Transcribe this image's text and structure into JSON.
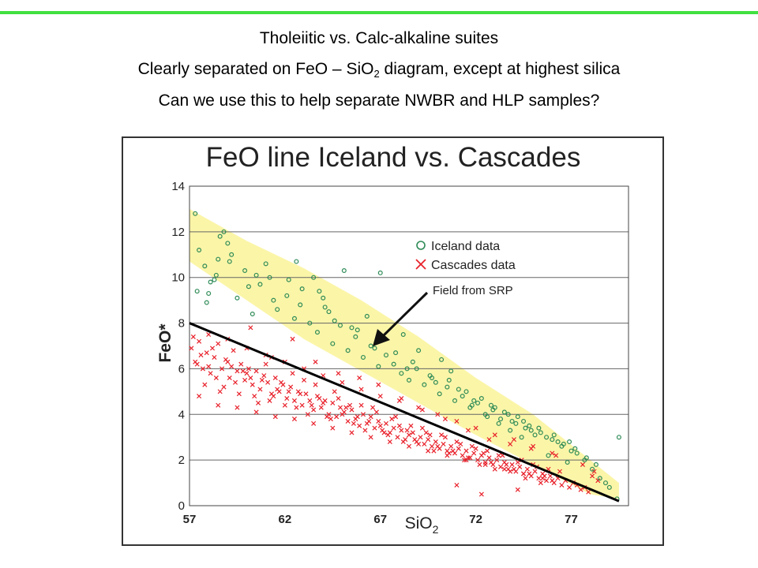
{
  "slide": {
    "line1": "Tholeiitic vs. Calc-alkaline suites",
    "line2_pre": "Clearly separated on FeO – SiO",
    "line2_sub": "2",
    "line2_post": " diagram, except at highest silica",
    "line3": "Can we use this to help separate NWBR and HLP samples?",
    "accent_color": "#40e040"
  },
  "chart_data": {
    "type": "scatter",
    "title": "FeO line Iceland vs. Cascades",
    "xlabel": "SiO",
    "xlabel_sub": "2",
    "ylabel": "FeO*",
    "xlim": [
      57,
      80
    ],
    "ylim": [
      0,
      14
    ],
    "xticks": [
      57,
      62,
      67,
      72,
      77
    ],
    "yticks": [
      0,
      2,
      4,
      6,
      8,
      10,
      12,
      14
    ],
    "grid": "horizontal",
    "legend": [
      {
        "label": "Iceland data",
        "marker": "circle",
        "color": "#2e8b57"
      },
      {
        "label": "Cascades data",
        "marker": "x",
        "color": "#e8202a"
      }
    ],
    "annotation": {
      "text": "Field from SRP"
    },
    "field_color": "#fbf5a8",
    "field_from_srp": {
      "upper": [
        [
          57,
          13.0
        ],
        [
          60,
          11.6
        ],
        [
          63,
          10.4
        ],
        [
          66,
          9.0
        ],
        [
          69,
          7.4
        ],
        [
          72,
          5.6
        ],
        [
          75,
          4.0
        ],
        [
          78,
          2.0
        ],
        [
          79.5,
          1.0
        ]
      ],
      "lower": [
        [
          79.5,
          0.3
        ],
        [
          78,
          0.5
        ],
        [
          75,
          1.8
        ],
        [
          72,
          3.1
        ],
        [
          69,
          4.5
        ],
        [
          66,
          5.9
        ],
        [
          63,
          7.3
        ],
        [
          60,
          9.0
        ],
        [
          57,
          10.7
        ]
      ]
    },
    "line": {
      "x": [
        57,
        79.5
      ],
      "y": [
        8.0,
        0.2
      ],
      "color": "#000000"
    },
    "series": [
      {
        "name": "Iceland data",
        "color": "#2e8b57",
        "marker": "circle",
        "x": [
          57.3,
          57.5,
          57.8,
          58.1,
          58.4,
          58.6,
          57.4,
          57.9,
          58.3,
          58.8,
          59.1,
          59.5,
          59.9,
          60.3,
          60.7,
          61.2,
          61.6,
          62.1,
          62.5,
          62.9,
          63.3,
          63.7,
          64.1,
          64.5,
          64.9,
          65.3,
          65.7,
          66.1,
          66.5,
          66.9,
          67.3,
          67.7,
          68.1,
          68.5,
          68.9,
          69.3,
          69.7,
          70.1,
          70.5,
          70.9,
          71.3,
          71.7,
          72.1,
          72.5,
          72.9,
          73.3,
          73.7,
          74.1,
          74.5,
          74.9,
          75.3,
          75.7,
          76.1,
          76.5,
          76.9,
          77.3,
          77.7,
          78.1,
          78.5,
          79.0,
          79.4,
          62.6,
          65.1,
          59.2,
          61.0,
          63.5,
          64.0,
          66.3,
          67.0,
          68.2,
          69.0,
          70.2,
          70.7,
          71.5,
          72.3,
          72.8,
          73.5,
          74.2,
          74.8,
          75.4,
          76.0,
          76.6,
          77.2,
          77.8,
          78.3,
          62.2,
          63.8,
          60.1,
          60.5,
          64.6,
          65.8,
          66.8,
          68.7,
          69.6,
          71.1,
          71.9,
          73.0,
          73.9,
          74.6,
          75.1,
          76.3,
          77.0,
          58.0,
          58.5,
          59.0,
          61.4,
          62.8,
          64.3,
          65.5,
          66.7,
          67.8,
          68.4,
          69.9,
          70.6,
          71.8,
          72.6,
          73.2,
          73.8,
          74.4,
          75.8,
          76.8,
          78.8,
          79.5
        ],
        "y": [
          12.8,
          11.2,
          10.5,
          9.8,
          10.1,
          11.8,
          9.4,
          8.9,
          9.9,
          12.0,
          10.7,
          9.1,
          10.3,
          8.4,
          9.7,
          10.0,
          8.6,
          9.2,
          8.2,
          9.5,
          8.0,
          7.6,
          8.7,
          7.1,
          7.9,
          6.8,
          7.4,
          6.5,
          7.0,
          6.1,
          6.6,
          6.2,
          5.8,
          5.5,
          6.0,
          5.3,
          5.6,
          4.9,
          5.2,
          4.6,
          4.8,
          4.3,
          4.5,
          4.0,
          4.2,
          3.8,
          4.0,
          3.6,
          3.7,
          3.3,
          3.4,
          3.0,
          3.1,
          2.6,
          2.8,
          2.3,
          2.0,
          1.6,
          1.2,
          0.8,
          0.3,
          10.7,
          10.3,
          11.0,
          10.6,
          10.0,
          9.1,
          8.3,
          10.2,
          7.5,
          6.8,
          6.4,
          5.9,
          5.0,
          4.7,
          4.4,
          4.1,
          3.9,
          3.5,
          3.2,
          2.9,
          2.7,
          2.5,
          2.1,
          1.8,
          9.9,
          9.4,
          9.6,
          10.1,
          8.1,
          7.7,
          7.2,
          6.3,
          5.7,
          5.1,
          4.6,
          4.3,
          3.7,
          3.4,
          3.1,
          2.8,
          2.4,
          9.3,
          10.8,
          11.5,
          9.0,
          8.8,
          8.5,
          7.8,
          6.9,
          6.7,
          6.0,
          5.4,
          5.5,
          4.4,
          3.9,
          3.6,
          3.3,
          3.0,
          2.2,
          1.9,
          1.0,
          3.0
        ]
      },
      {
        "name": "Cascades data",
        "color": "#e8202a",
        "marker": "x",
        "x": [
          57.1,
          57.3,
          57.5,
          57.7,
          57.9,
          58.1,
          58.3,
          58.5,
          58.7,
          58.9,
          59.1,
          59.3,
          59.5,
          59.7,
          59.9,
          60.1,
          60.3,
          60.5,
          60.7,
          60.9,
          61.1,
          61.3,
          61.5,
          61.7,
          61.9,
          62.1,
          62.3,
          62.5,
          62.7,
          62.9,
          63.1,
          63.3,
          63.5,
          63.7,
          63.9,
          64.1,
          64.3,
          64.5,
          64.7,
          64.9,
          65.1,
          65.3,
          65.5,
          65.7,
          65.9,
          66.1,
          66.3,
          66.5,
          66.7,
          66.9,
          67.1,
          67.3,
          67.5,
          67.7,
          67.9,
          68.1,
          68.3,
          68.5,
          68.7,
          68.9,
          69.1,
          69.3,
          69.5,
          69.7,
          69.9,
          70.1,
          70.3,
          70.5,
          70.7,
          70.9,
          71.1,
          71.3,
          71.5,
          71.7,
          71.9,
          72.1,
          72.3,
          72.5,
          72.7,
          72.9,
          73.1,
          73.3,
          73.5,
          73.7,
          73.9,
          74.1,
          74.3,
          74.5,
          74.7,
          74.9,
          75.1,
          75.3,
          75.5,
          75.7,
          75.9,
          76.1,
          76.3,
          76.5,
          76.7,
          76.9,
          77.1,
          77.3,
          77.5,
          77.7,
          77.9,
          78.1,
          78.4,
          57.2,
          57.6,
          58.0,
          58.4,
          58.8,
          59.2,
          59.6,
          60.0,
          60.4,
          60.8,
          61.2,
          61.6,
          62.0,
          62.4,
          62.8,
          63.2,
          63.6,
          64.0,
          64.4,
          64.8,
          65.2,
          65.6,
          66.0,
          66.4,
          66.8,
          67.2,
          67.6,
          68.0,
          68.4,
          68.8,
          69.2,
          69.6,
          70.0,
          70.4,
          70.8,
          71.2,
          71.6,
          72.0,
          72.4,
          72.8,
          73.2,
          73.6,
          74.0,
          74.4,
          74.8,
          75.2,
          75.6,
          76.0,
          76.4,
          57.4,
          57.8,
          58.2,
          58.6,
          59.0,
          59.4,
          59.8,
          60.2,
          60.6,
          61.0,
          61.4,
          61.8,
          62.2,
          62.6,
          63.0,
          63.4,
          63.8,
          64.2,
          64.6,
          65.0,
          65.4,
          65.8,
          66.2,
          66.6,
          67.0,
          67.4,
          67.8,
          68.2,
          68.6,
          69.0,
          69.4,
          69.8,
          70.2,
          70.6,
          71.0,
          71.4,
          71.8,
          72.2,
          72.6,
          73.0,
          73.4,
          73.8,
          74.2,
          74.6,
          75.0,
          75.4,
          75.8,
          58.0,
          59.0,
          60.0,
          61.0,
          62.0,
          63.0,
          64.0,
          65.0,
          66.0,
          67.0,
          68.0,
          69.0,
          70.0,
          71.0,
          72.0,
          73.0,
          74.0,
          75.0,
          76.0,
          57.5,
          58.5,
          59.5,
          60.5,
          61.5,
          62.5,
          63.5,
          64.5,
          65.5,
          66.5,
          67.5,
          68.5,
          69.5,
          70.5,
          71.5,
          72.5,
          73.5,
          74.5,
          75.5,
          60.2,
          61.3,
          62.4,
          63.6,
          64.8,
          65.9,
          66.9,
          68.1,
          69.2,
          70.4,
          71.6,
          72.7,
          73.8,
          74.9,
          76.2,
          77.6,
          78.2,
          71.0,
          72.3,
          74.2
        ],
        "y": [
          6.9,
          6.3,
          7.2,
          6.0,
          6.7,
          5.8,
          6.5,
          7.1,
          6.0,
          6.4,
          5.6,
          6.8,
          5.9,
          6.2,
          5.5,
          6.0,
          5.3,
          5.9,
          5.1,
          5.7,
          5.4,
          4.9,
          5.6,
          5.0,
          5.3,
          4.7,
          5.2,
          4.6,
          5.0,
          4.4,
          4.9,
          4.6,
          4.2,
          4.8,
          4.3,
          4.6,
          4.0,
          4.5,
          3.9,
          4.3,
          4.1,
          3.7,
          4.2,
          3.8,
          3.5,
          4.0,
          3.6,
          3.9,
          3.4,
          3.7,
          3.3,
          3.6,
          3.2,
          3.4,
          3.0,
          3.3,
          2.9,
          3.1,
          3.2,
          2.8,
          3.0,
          2.7,
          2.9,
          2.6,
          2.8,
          2.5,
          2.7,
          2.4,
          2.6,
          2.3,
          2.5,
          2.2,
          2.4,
          2.1,
          2.3,
          2.0,
          2.2,
          1.9,
          2.1,
          1.8,
          2.0,
          1.7,
          1.9,
          1.6,
          1.8,
          1.5,
          1.7,
          1.4,
          1.6,
          1.3,
          1.5,
          1.2,
          1.4,
          1.1,
          1.3,
          1.0,
          1.2,
          0.9,
          1.1,
          0.8,
          1.0,
          0.9,
          0.7,
          0.8,
          0.6,
          1.3,
          1.1,
          7.4,
          6.6,
          6.1,
          5.6,
          5.2,
          6.1,
          4.9,
          5.8,
          4.8,
          5.5,
          4.6,
          5.1,
          4.4,
          5.8,
          4.9,
          4.0,
          5.3,
          4.5,
          3.8,
          4.7,
          4.3,
          3.6,
          4.4,
          3.7,
          4.1,
          3.2,
          3.8,
          3.5,
          3.3,
          2.9,
          3.4,
          3.1,
          2.6,
          3.0,
          2.4,
          2.7,
          2.1,
          2.5,
          2.3,
          1.9,
          2.2,
          1.8,
          1.6,
          2.0,
          1.4,
          1.7,
          1.3,
          1.1,
          1.5,
          6.2,
          5.3,
          6.9,
          5.0,
          6.3,
          5.4,
          5.9,
          5.6,
          4.5,
          6.2,
          4.8,
          5.4,
          5.0,
          4.3,
          5.5,
          4.4,
          4.7,
          3.9,
          5.0,
          4.0,
          4.4,
          3.9,
          3.3,
          4.3,
          3.5,
          3.1,
          3.9,
          2.8,
          3.5,
          2.7,
          3.2,
          2.4,
          3.1,
          2.3,
          2.8,
          2.0,
          2.6,
          1.8,
          2.4,
          1.6,
          2.2,
          1.5,
          1.9,
          1.2,
          1.8,
          1.0,
          1.6,
          7.5,
          7.3,
          6.9,
          6.6,
          6.3,
          6.0,
          5.7,
          5.4,
          5.1,
          4.8,
          4.6,
          4.3,
          4.0,
          3.7,
          3.4,
          3.1,
          2.9,
          2.6,
          2.3,
          4.8,
          4.4,
          4.3,
          4.1,
          3.9,
          3.8,
          3.6,
          3.4,
          3.2,
          3.0,
          2.8,
          2.6,
          2.4,
          2.2,
          2.0,
          1.8,
          1.6,
          1.4,
          1.2,
          7.8,
          6.5,
          7.3,
          6.3,
          5.8,
          5.6,
          5.3,
          4.7,
          4.2,
          3.8,
          3.3,
          2.9,
          2.7,
          2.5,
          2.2,
          1.8,
          1.5,
          0.9,
          0.5,
          0.7
        ]
      }
    ]
  }
}
